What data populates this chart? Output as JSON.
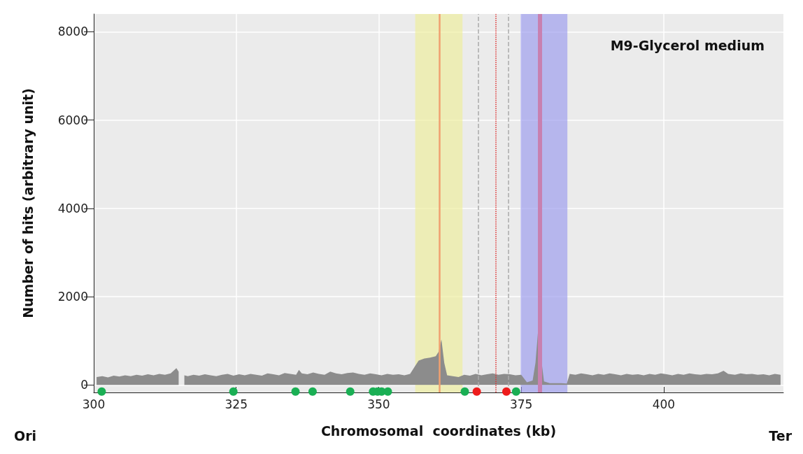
{
  "chart_data": {
    "type": "area",
    "title": "M9-Glycerol medium",
    "xlabel": "Chromosomal  coordinates (kb)",
    "ylabel": "Number of hits (arbitrary unit)",
    "annotations": [
      "Ori",
      "Ter"
    ],
    "xlim": [
      300,
      421
    ],
    "xticks": [
      300,
      325,
      350,
      375,
      400
    ],
    "ylim": [
      -170,
      8400
    ],
    "yticks": [
      0,
      2000,
      4000,
      6000,
      8000
    ],
    "grid": true,
    "series": [
      {
        "color": "#8c8c8c",
        "x": [
          300.5,
          301.5,
          302.5,
          303.5,
          304.5,
          305.5,
          306.5,
          307.5,
          308.5,
          309.5,
          310.5,
          311.5,
          312.5,
          313.5,
          314.5,
          314.9,
          315.3,
          315.9,
          316.5,
          317.5,
          318.5,
          319.5,
          320.5,
          321.5,
          322.5,
          323.5,
          324.5,
          325.5,
          326.5,
          327.5,
          328.5,
          329.5,
          330.5,
          331.5,
          332.5,
          333.5,
          334.5,
          335.5,
          336,
          336.5,
          337.5,
          338.5,
          339.5,
          340.5,
          341.5,
          342.5,
          343.5,
          344.5,
          345.5,
          346.5,
          347.5,
          348.5,
          349.5,
          350.5,
          351.5,
          352.5,
          353.5,
          354.5,
          355.5,
          356.5,
          357,
          358,
          359,
          360,
          360.5,
          361,
          361.5,
          362,
          363,
          364,
          365,
          366,
          367,
          368,
          369,
          370,
          371,
          372,
          373,
          374,
          375,
          376,
          377,
          377.5,
          378,
          378.5,
          379,
          380,
          381,
          382,
          383,
          383.5,
          384.5,
          385.5,
          386.5,
          387.5,
          388.5,
          389.5,
          390.5,
          391.5,
          392.5,
          393.5,
          394.5,
          395.5,
          396.5,
          397.5,
          398.5,
          399.5,
          400.5,
          401.5,
          402.5,
          403.5,
          404.5,
          405.5,
          406.5,
          407.5,
          408.5,
          409.5,
          410.5,
          411.3,
          412.5,
          413.5,
          414.5,
          415.5,
          416.5,
          417.5,
          418.5,
          419.5,
          420.5
        ],
        "values": [
          180,
          200,
          170,
          210,
          190,
          220,
          200,
          230,
          210,
          240,
          220,
          250,
          230,
          260,
          380,
          300,
          null,
          220,
          200,
          230,
          210,
          240,
          220,
          200,
          230,
          250,
          210,
          240,
          220,
          250,
          230,
          210,
          260,
          240,
          220,
          270,
          250,
          230,
          340,
          260,
          240,
          280,
          250,
          230,
          300,
          260,
          240,
          270,
          280,
          250,
          230,
          260,
          240,
          220,
          250,
          230,
          240,
          220,
          250,
          450,
          550,
          600,
          620,
          650,
          750,
          1030,
          500,
          220,
          200,
          180,
          230,
          210,
          250,
          220,
          240,
          260,
          230,
          250,
          240,
          220,
          230,
          60,
          100,
          500,
          1290,
          600,
          80,
          40,
          40,
          40,
          30,
          250,
          230,
          260,
          240,
          220,
          250,
          230,
          260,
          240,
          220,
          250,
          230,
          240,
          220,
          250,
          230,
          260,
          240,
          220,
          250,
          230,
          260,
          240,
          230,
          250,
          240,
          260,
          320,
          250,
          230,
          260,
          240,
          250,
          230,
          240,
          220,
          250,
          230
        ]
      },
      {
        "type": "scatter",
        "marker": "circle",
        "color": "#1aaf54",
        "x": [
          301.4,
          324.5,
          335.4,
          338.4,
          345,
          349,
          349.8,
          350.5,
          351.6,
          365.1,
          374.1
        ],
        "values": [
          -150,
          -150,
          -150,
          -150,
          -150,
          -150,
          -150,
          -150,
          -150,
          -150,
          -150
        ]
      },
      {
        "type": "scatter",
        "marker": "circle",
        "color": "#ee1c1c",
        "x": [
          367.2,
          372.4
        ],
        "values": [
          -150,
          -150
        ]
      }
    ],
    "bands": [
      {
        "axis": "x",
        "from": 356.4,
        "to": 364.7,
        "color": "#eeee99"
      },
      {
        "axis": "x",
        "from": 374.9,
        "to": 383.1,
        "color": "#9999ee"
      }
    ],
    "ref_lines": [
      {
        "axis": "x",
        "value": 360.7,
        "color": "#f0a070",
        "line_style": "solid"
      },
      {
        "axis": "x",
        "value": 378.3,
        "color": "#c880b0",
        "line_style": "solid"
      },
      {
        "axis": "x",
        "value": 367.5,
        "color": "#aaaaaa",
        "line_style": "dashed"
      },
      {
        "axis": "x",
        "value": 370.5,
        "color": "#e03030",
        "line_style": "dotted"
      },
      {
        "axis": "x",
        "value": 372.7,
        "color": "#aaaaaa",
        "line_style": "dashed"
      }
    ]
  }
}
